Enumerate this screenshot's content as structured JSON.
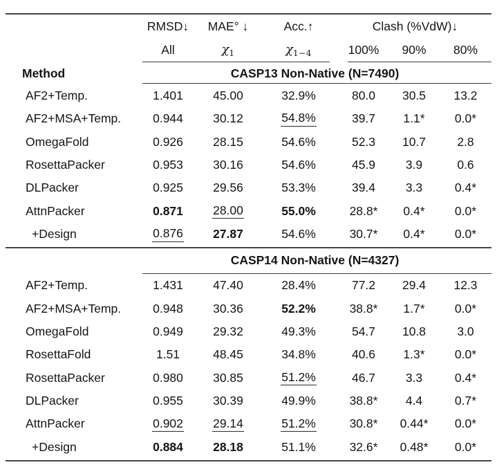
{
  "page": {
    "background": "#ffffff",
    "text_color": "#141414",
    "rule_color": "#454545"
  },
  "table": {
    "method_label": "Method",
    "header1": {
      "rmsd": "RMSD↓",
      "mae": "MAE° ↓",
      "acc": "Acc.↑",
      "clash": "Clash (%VdW)↓"
    },
    "header2": {
      "all": "All",
      "chi1": {
        "base": "χ",
        "sub": "1"
      },
      "chi14": {
        "base": "χ",
        "sub": "1−4"
      },
      "p100": "100%",
      "p90": "90%",
      "p80": "80%"
    },
    "sections": [
      {
        "title": "CASP13 Non-Native (N=7490)",
        "rows": [
          {
            "method": "AF2+Temp.",
            "indent": false,
            "cells": [
              {
                "v": "1.401"
              },
              {
                "v": "45.00"
              },
              {
                "v": "32.9%"
              },
              {
                "v": "80.0"
              },
              {
                "v": "30.5"
              },
              {
                "v": "13.2"
              }
            ]
          },
          {
            "method": "AF2+MSA+Temp.",
            "indent": false,
            "cells": [
              {
                "v": "0.944"
              },
              {
                "v": "30.12"
              },
              {
                "v": "54.8%",
                "u": true
              },
              {
                "v": "39.7"
              },
              {
                "v": "1.1*"
              },
              {
                "v": "0.0*"
              }
            ]
          },
          {
            "method": "OmegaFold",
            "indent": false,
            "cells": [
              {
                "v": "0.926"
              },
              {
                "v": "28.15"
              },
              {
                "v": "54.6%"
              },
              {
                "v": "52.3"
              },
              {
                "v": "10.7"
              },
              {
                "v": "2.8"
              }
            ]
          },
          {
            "method": "RosettaPacker",
            "indent": false,
            "cells": [
              {
                "v": "0.953"
              },
              {
                "v": "30.16"
              },
              {
                "v": "54.6%"
              },
              {
                "v": "45.9"
              },
              {
                "v": "3.9"
              },
              {
                "v": "0.6"
              }
            ]
          },
          {
            "method": "DLPacker",
            "indent": false,
            "cells": [
              {
                "v": "0.925"
              },
              {
                "v": "29.56"
              },
              {
                "v": "53.3%"
              },
              {
                "v": "39.4"
              },
              {
                "v": "3.3"
              },
              {
                "v": "0.4*"
              }
            ]
          },
          {
            "method": "AttnPacker",
            "indent": false,
            "cells": [
              {
                "v": "0.871",
                "b": true
              },
              {
                "v": "28.00",
                "u": true
              },
              {
                "v": "55.0%",
                "b": true
              },
              {
                "v": "28.8*"
              },
              {
                "v": "0.4*"
              },
              {
                "v": "0.0*"
              }
            ]
          },
          {
            "method": "+Design",
            "indent": true,
            "cells": [
              {
                "v": "0.876",
                "u": true
              },
              {
                "v": "27.87",
                "b": true
              },
              {
                "v": "54.6%"
              },
              {
                "v": "30.7*"
              },
              {
                "v": "0.4*"
              },
              {
                "v": "0.0*"
              }
            ]
          }
        ]
      },
      {
        "title": "CASP14 Non-Native (N=4327)",
        "rows": [
          {
            "method": "AF2+Temp.",
            "indent": false,
            "cells": [
              {
                "v": "1.431"
              },
              {
                "v": "47.40"
              },
              {
                "v": "28.4%"
              },
              {
                "v": "77.2"
              },
              {
                "v": "29.4"
              },
              {
                "v": "12.3"
              }
            ]
          },
          {
            "method": "AF2+MSA+Temp.",
            "indent": false,
            "cells": [
              {
                "v": "0.948"
              },
              {
                "v": "30.36"
              },
              {
                "v": "52.2%",
                "b": true
              },
              {
                "v": "38.8*"
              },
              {
                "v": "1.7*"
              },
              {
                "v": "0.0*"
              }
            ]
          },
          {
            "method": "OmegaFold",
            "indent": false,
            "cells": [
              {
                "v": "0.949"
              },
              {
                "v": "29.32"
              },
              {
                "v": "49.3%"
              },
              {
                "v": "54.7"
              },
              {
                "v": "10.8"
              },
              {
                "v": "3.0"
              }
            ]
          },
          {
            "method": "RosettaFold",
            "indent": false,
            "cells": [
              {
                "v": "1.51"
              },
              {
                "v": "48.45"
              },
              {
                "v": "34.8%"
              },
              {
                "v": "40.6"
              },
              {
                "v": "1.3*"
              },
              {
                "v": "0.0*"
              }
            ]
          },
          {
            "method": "RosettaPacker",
            "indent": false,
            "cells": [
              {
                "v": "0.980"
              },
              {
                "v": "30.85"
              },
              {
                "v": "51.2%",
                "u": true
              },
              {
                "v": "46.7"
              },
              {
                "v": "3.3"
              },
              {
                "v": "0.4*"
              }
            ]
          },
          {
            "method": "DLPacker",
            "indent": false,
            "cells": [
              {
                "v": "0.955"
              },
              {
                "v": "30.39"
              },
              {
                "v": "49.9%"
              },
              {
                "v": "38.8*"
              },
              {
                "v": "4.4"
              },
              {
                "v": "0.7*"
              }
            ]
          },
          {
            "method": "AttnPacker",
            "indent": false,
            "cells": [
              {
                "v": "0.902",
                "u": true
              },
              {
                "v": "29.14",
                "u": true
              },
              {
                "v": "51.2%",
                "u": true
              },
              {
                "v": "30.8*"
              },
              {
                "v": "0.44*"
              },
              {
                "v": "0.0*"
              }
            ]
          },
          {
            "method": "+Design",
            "indent": true,
            "cells": [
              {
                "v": "0.884",
                "b": true
              },
              {
                "v": "28.18",
                "b": true
              },
              {
                "v": "51.1%"
              },
              {
                "v": "32.6*"
              },
              {
                "v": "0.48*"
              },
              {
                "v": "0.0*"
              }
            ]
          }
        ]
      }
    ]
  }
}
